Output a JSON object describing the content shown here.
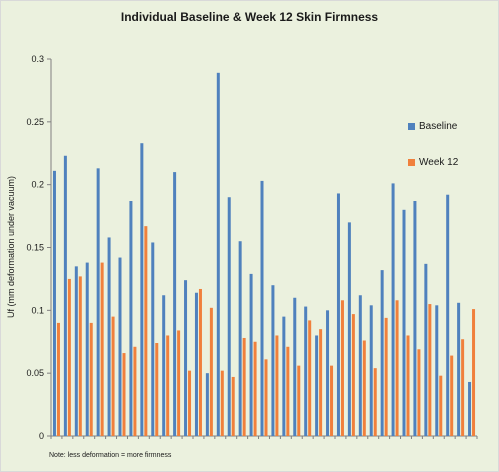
{
  "chart_data": {
    "type": "bar",
    "title": "Individual Baseline & Week 12 Skin Firmness",
    "ylabel": "Uf (mm deformation under vacuum)",
    "xlabel": "",
    "note": "Note: less deformation = more firmness",
    "ylim": [
      0,
      0.3
    ],
    "yticks": [
      "0",
      "0.05",
      "0.1",
      "0.15",
      "0.2",
      "0.25",
      "0.3"
    ],
    "grid": false,
    "legend_position": "right",
    "series": [
      {
        "name": "Baseline",
        "color": "#4f81bd",
        "values": [
          0.211,
          0.223,
          0.135,
          0.138,
          0.213,
          0.158,
          0.142,
          0.187,
          0.233,
          0.154,
          0.112,
          0.21,
          0.124,
          0.114,
          0.05,
          0.289,
          0.19,
          0.155,
          0.129,
          0.203,
          0.12,
          0.095,
          0.11,
          0.103,
          0.08,
          0.1,
          0.193,
          0.17,
          0.112,
          0.104,
          0.132,
          0.201,
          0.18,
          0.187,
          0.137,
          0.104,
          0.192,
          0.106,
          0.043
        ]
      },
      {
        "name": "Week 12",
        "color": "#f0803c",
        "values": [
          0.09,
          0.125,
          0.127,
          0.09,
          0.138,
          0.095,
          0.066,
          0.071,
          0.167,
          0.074,
          0.08,
          0.084,
          0.052,
          0.117,
          0.102,
          0.052,
          0.047,
          0.078,
          0.075,
          0.061,
          0.08,
          0.071,
          0.056,
          0.092,
          0.085,
          0.056,
          0.108,
          0.097,
          0.076,
          0.054,
          0.094,
          0.108,
          0.08,
          0.069,
          0.105,
          0.048,
          0.064,
          0.077,
          0.101
        ]
      }
    ]
  }
}
